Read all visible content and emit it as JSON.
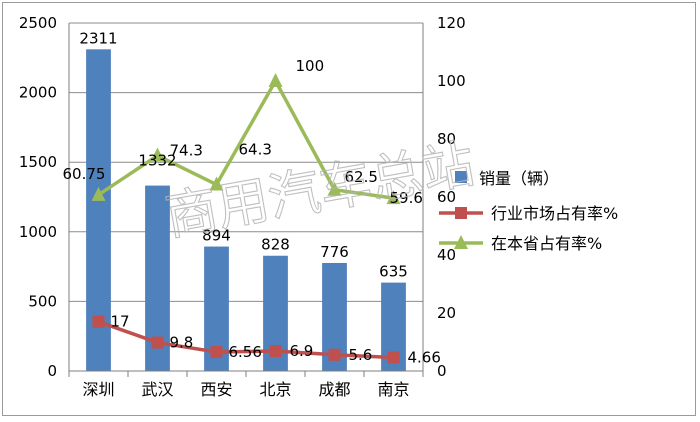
{
  "chart_data": {
    "type": "bar",
    "categories": [
      "深圳",
      "武汉",
      "西安",
      "北京",
      "成都",
      "南京"
    ],
    "series": [
      {
        "name": "销量（辆）",
        "type": "bar",
        "axis": "left",
        "color": "#4f81bd",
        "values": [
          2311,
          1332,
          894,
          828,
          776,
          635
        ],
        "labels": [
          "2311",
          "1332",
          "894",
          "828",
          "776",
          "635"
        ]
      },
      {
        "name": "行业市场占有率%",
        "type": "line",
        "axis": "right",
        "color": "#c0504d",
        "marker": "square",
        "values": [
          17,
          9.8,
          6.56,
          6.9,
          5.6,
          4.66
        ],
        "labels": [
          "17",
          "9.8",
          "6.56",
          "6.9",
          "5.6",
          "4.66"
        ]
      },
      {
        "name": "在本省占有率%",
        "type": "line",
        "axis": "right",
        "color": "#9bbb59",
        "marker": "triangle",
        "values": [
          60.75,
          74.3,
          64.3,
          100,
          62.5,
          59.6
        ],
        "labels": [
          "60.75",
          "74.3",
          "64.3",
          "100",
          "62.5",
          "59.6"
        ]
      }
    ],
    "y_left": {
      "min": 0,
      "max": 2500,
      "ticks": [
        "0",
        "500",
        "1000",
        "1500",
        "2000",
        "2500"
      ]
    },
    "y_right": {
      "min": 0,
      "max": 120,
      "ticks": [
        "0",
        "20",
        "40",
        "60",
        "80",
        "100",
        "120"
      ]
    },
    "grid": true,
    "legend_position": "right"
  },
  "watermark": "商用汽车总站"
}
